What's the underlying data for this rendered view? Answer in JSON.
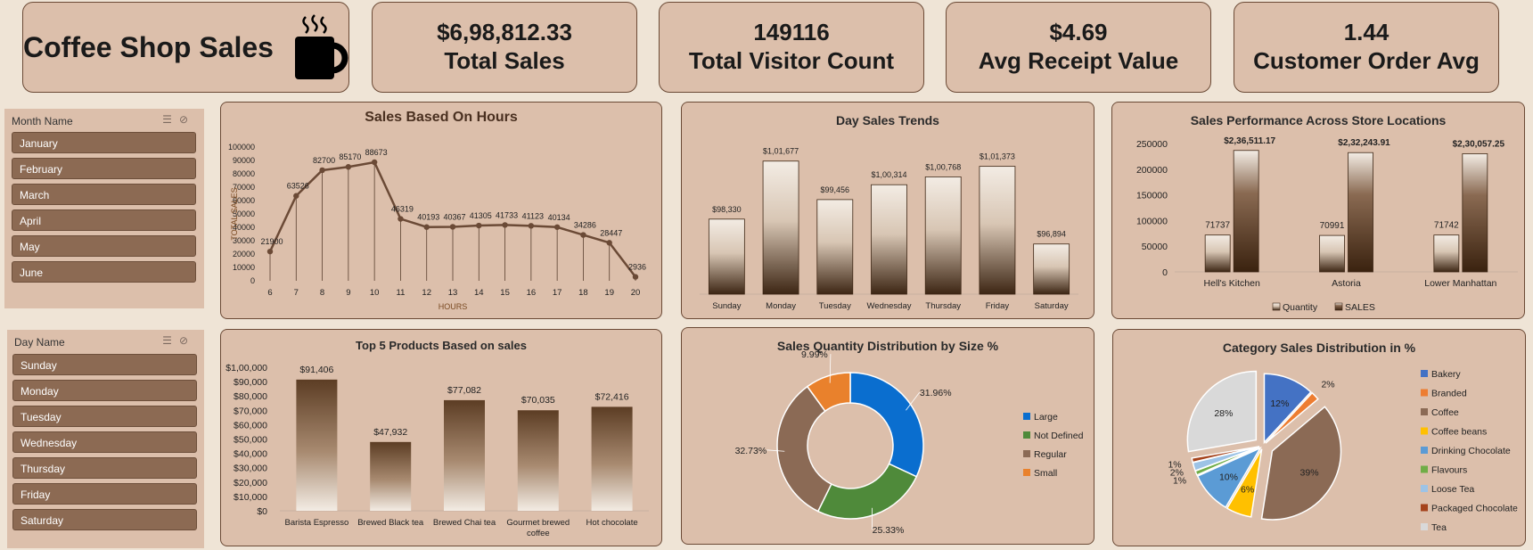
{
  "header": {
    "title": "Coffee Shop Sales",
    "icon": "coffee-cup-icon",
    "kpis": [
      {
        "value": "$6,98,812.33",
        "label": "Total Sales"
      },
      {
        "value": "149116",
        "label": "Total Visitor Count"
      },
      {
        "value": "$4.69",
        "label": "Avg Receipt Value"
      },
      {
        "value": "1.44",
        "label": "Customer Order Avg"
      }
    ]
  },
  "slicers": {
    "month": {
      "title": "Month Name",
      "items": [
        "January",
        "February",
        "March",
        "April",
        "May",
        "June"
      ]
    },
    "day": {
      "title": "Day Name",
      "items": [
        "Sunday",
        "Monday",
        "Tuesday",
        "Wednesday",
        "Thursday",
        "Friday",
        "Saturday"
      ]
    }
  },
  "colors": {
    "brown_dark": "#5c3d24",
    "brown_light": "#f3ece4",
    "panel": "#dcbfab",
    "line": "#6b4a36"
  },
  "chart_data": [
    {
      "type": "line",
      "title": "Sales Based On Hours",
      "xlabel": "HOURS",
      "ylabel": "TOTAL SALES",
      "x": [
        6,
        7,
        8,
        9,
        10,
        11,
        12,
        13,
        14,
        15,
        16,
        17,
        18,
        19,
        20
      ],
      "values": [
        21900,
        63526,
        82700,
        85170,
        88673,
        46319,
        40193,
        40367,
        41305,
        41733,
        41123,
        40134,
        34286,
        28447,
        2936
      ],
      "data_labels": [
        "21900",
        "63526",
        "82700",
        "85170",
        "88673",
        "46319",
        "40193",
        "40367",
        "41305",
        "41733",
        "41123",
        "40134",
        "34286",
        "28447",
        "2936"
      ],
      "ylim": [
        0,
        100000
      ],
      "yticks": [
        "0",
        "10000",
        "20000",
        "30000",
        "40000",
        "50000",
        "60000",
        "70000",
        "80000",
        "90000",
        "100000"
      ]
    },
    {
      "type": "bar",
      "title": "Day Sales Trends",
      "categories": [
        "Sunday",
        "Monday",
        "Tuesday",
        "Wednesday",
        "Thursday",
        "Friday",
        "Saturday"
      ],
      "values": [
        98330,
        101677,
        99456,
        100314,
        100768,
        101373,
        96894
      ],
      "data_labels": [
        "$98,330",
        "$1,01,677",
        "$99,456",
        "$1,00,314",
        "$1,00,768",
        "$1,01,373",
        "$96,894"
      ],
      "ylim": [
        94000,
        103000
      ]
    },
    {
      "type": "bar",
      "title": "Sales Performance Across Store Locations",
      "categories": [
        "Hell's Kitchen",
        "Astoria",
        "Lower Manhattan"
      ],
      "series": [
        {
          "name": "Quantity",
          "values": [
            71737,
            70991,
            71742
          ],
          "data_labels": [
            "71737",
            "70991",
            "71742"
          ]
        },
        {
          "name": "SALES",
          "values": [
            236511.17,
            232243.91,
            230057.25
          ],
          "data_labels": [
            "$2,36,511.17",
            "$2,32,243.91",
            "$2,30,057.25"
          ]
        }
      ],
      "ylim": [
        0,
        250000
      ],
      "yticks": [
        "0",
        "50000",
        "100000",
        "150000",
        "200000",
        "250000"
      ],
      "legend": "bottom"
    },
    {
      "type": "bar",
      "title": "Top 5 Products Based on sales",
      "categories": [
        "Barista Espresso",
        "Brewed Black tea",
        "Brewed Chai tea",
        "Gourmet brewed coffee",
        "Hot chocolate"
      ],
      "values": [
        91406,
        47932,
        77082,
        70035,
        72416
      ],
      "data_labels": [
        "$91,406",
        "$47,932",
        "$77,082",
        "$70,035",
        "$72,416"
      ],
      "ylim": [
        0,
        100000
      ],
      "yticks": [
        "$0",
        "$10,000",
        "$20,000",
        "$30,000",
        "$40,000",
        "$50,000",
        "$60,000",
        "$70,000",
        "$80,000",
        "$90,000",
        "$1,00,000"
      ]
    },
    {
      "type": "pie",
      "title": "Sales Quantity Distribution by Size %",
      "labels": [
        "Large",
        "Not Defined",
        "Regular",
        "Small"
      ],
      "values": [
        31.96,
        25.33,
        32.73,
        9.99
      ],
      "data_labels": [
        "31.96%",
        "25.33%",
        "32.73%",
        "9.99%"
      ],
      "colors": [
        "#0a6ecf",
        "#4f8a3a",
        "#8b6a55",
        "#e9812c"
      ],
      "legend": "right"
    },
    {
      "type": "pie",
      "title": "Category Sales Distribution in %",
      "labels": [
        "Bakery",
        "Branded",
        "Coffee",
        "Coffee beans",
        "Drinking Chocolate",
        "Flavours",
        "Loose Tea",
        "Packaged Chocolate",
        "Tea"
      ],
      "values": [
        12,
        2,
        39,
        6,
        10,
        1,
        2,
        1,
        28
      ],
      "data_labels": [
        "12%",
        "2%",
        "39%",
        "6%",
        "10%",
        "1%",
        "2%",
        "1%",
        "28%"
      ],
      "colors": [
        "#4472c4",
        "#ed7d31",
        "#8b6a55",
        "#ffc000",
        "#5b9bd5",
        "#70ad47",
        "#9dc3e6",
        "#a5431c",
        "#d9d9d9"
      ],
      "legend": "right"
    }
  ]
}
